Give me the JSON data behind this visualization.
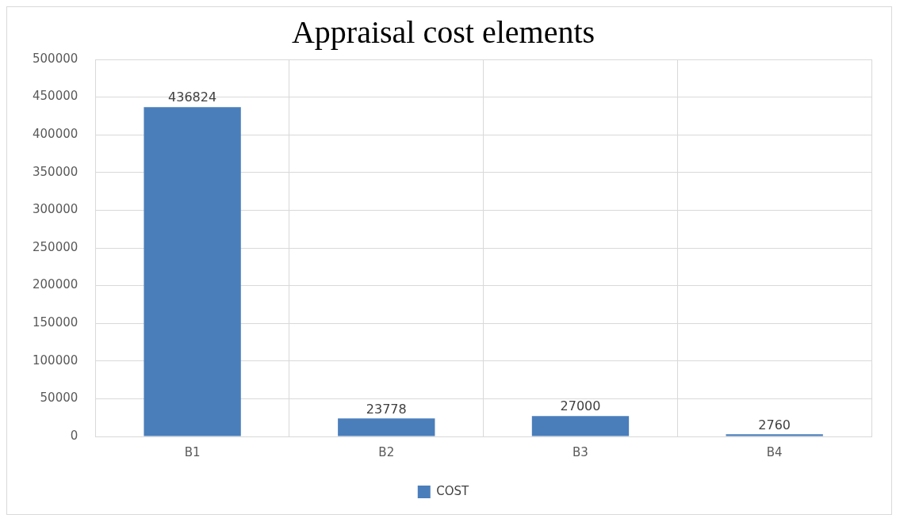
{
  "chart_data": {
    "type": "bar",
    "title": "Appraisal cost elements",
    "categories": [
      "B1",
      "B2",
      "B3",
      "B4"
    ],
    "series": [
      {
        "name": "COST",
        "color": "#4a7ebb",
        "values": [
          436824,
          23778,
          27000,
          2760
        ]
      }
    ],
    "ylim": [
      0,
      500000
    ],
    "yticks": [
      0,
      50000,
      100000,
      150000,
      200000,
      250000,
      300000,
      350000,
      400000,
      450000,
      500000
    ],
    "grid": true,
    "legend": "bottom",
    "data_labels": true
  }
}
